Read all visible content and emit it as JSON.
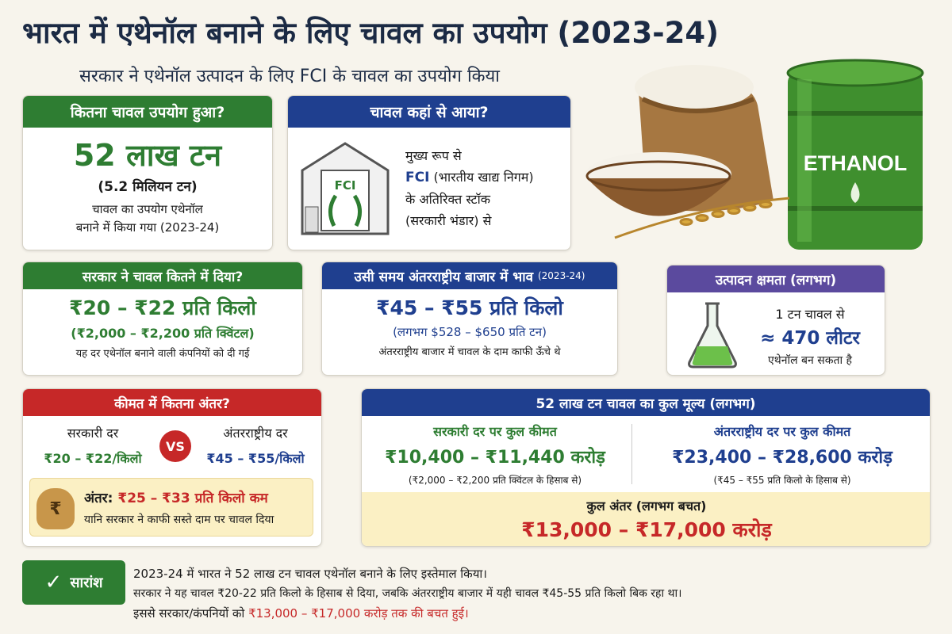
{
  "title": "भारत में एथेनॉल बनाने के लिए चावल का उपयोग (2023-24)",
  "subtitle": "सरकार ने एथेनॉल उत्पादन के लिए FCI के चावल का उपयोग किया",
  "illustration": {
    "barrel_label": "ETHANOL"
  },
  "usage": {
    "header": "कितना चावल उपयोग हुआ?",
    "big": "52 लाख टन",
    "million": "(5.2 मिलियन टन)",
    "line1": "चावल का उपयोग एथेनॉल",
    "line2": "बनाने में किया गया (2023-24)"
  },
  "source": {
    "header": "चावल कहां से आया?",
    "building_label": "FCI",
    "line1": "मुख्य रूप से",
    "fci": "FCI",
    "line2": " (भारतीय खाद्य निगम)",
    "line3": "के अतिरिक्त स्टॉक",
    "line4": "(सरकारी भंडार) से"
  },
  "govt_price": {
    "header": "सरकार ने चावल कितने में दिया?",
    "big": "₹20 – ₹22 प्रति किलो",
    "quintal": "(₹2,000 – ₹2,200 प्रति क्विंटल)",
    "note": "यह दर एथेनॉल बनाने वाली कंपनियों को दी गई"
  },
  "intl_price": {
    "header": "उसी समय अंतरराष्ट्रीय बाजार में भाव",
    "header_year": "(2023-24)",
    "big": "₹45 – ₹55 प्रति किलो",
    "usd": "(लगभग $528 – $650 प्रति टन)",
    "note": "अंतरराष्ट्रीय बाजार में चावल के दाम काफी ऊँचे थे"
  },
  "capacity": {
    "header": "उत्पादन क्षमता (लगभग)",
    "line1": "1 टन चावल से",
    "big": "≈ 470 लीटर",
    "line2": "एथेनॉल बन सकता है"
  },
  "compare": {
    "header": "कीमत में कितना अंतर?",
    "left_label": "सरकारी दर",
    "left_value": "₹20 – ₹22/किलो",
    "vs": "VS",
    "right_label": "अंतरराष्ट्रीय दर",
    "right_value": "₹45 – ₹55/किलो",
    "diff_label": "अंतर:",
    "diff_value": "₹25 – ₹33 प्रति किलो कम",
    "diff_note": "यानि सरकार ने काफी सस्ते दाम पर चावल दिया",
    "bag_symbol": "₹"
  },
  "total_value": {
    "header": "52 लाख टन चावल का कुल मूल्य (लगभग)",
    "left_title": "सरकारी दर पर कुल कीमत",
    "left_value": "₹10,400 – ₹11,440 करोड़",
    "left_note": "(₹2,000 – ₹2,200 प्रति क्विंटल के हिसाब से)",
    "right_title": "अंतरराष्ट्रीय दर पर कुल कीमत",
    "right_value": "₹23,400 – ₹28,600 करोड़",
    "right_note": "(₹45 – ₹55 प्रति किलो के हिसाब से)",
    "diff_title": "कुल अंतर (लगभग बचत)",
    "diff_value": "₹13,000 – ₹17,000 करोड़"
  },
  "summary": {
    "badge": "सारांश",
    "check": "✓",
    "line1": "2023-24 में भारत ने 52 लाख टन चावल एथेनॉल बनाने के लिए इस्तेमाल किया।",
    "line2": "सरकार ने यह चावल ₹20-22 प्रति किलो के हिसाब से दिया, जबकि अंतरराष्ट्रीय बाजार में यही चावल ₹45-55 प्रति किलो बिक रहा था।",
    "line3_pre": "इससे सरकार/कंपनियों को ",
    "line3_red": "₹13,000 – ₹17,000 करोड़ तक की बचत हुई।"
  },
  "colors": {
    "green": "#2e7d32",
    "blue": "#1f3f8f",
    "red": "#c62828",
    "purple": "#5b4a9e",
    "yellow": "#fbf0c4"
  }
}
